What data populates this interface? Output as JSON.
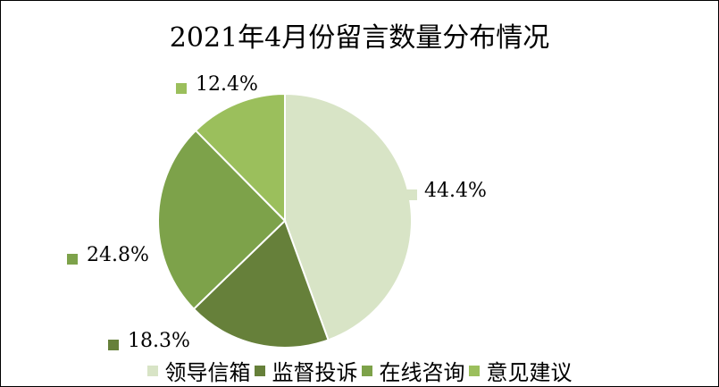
{
  "chart_data": {
    "type": "pie",
    "title": "2021年4月份留言数量分布情况",
    "categories": [
      "领导信箱",
      "监督投诉",
      "在线咨询",
      "意见建议"
    ],
    "values": [
      44.4,
      18.3,
      24.8,
      12.4
    ],
    "labels": [
      "44.4%",
      "18.3%",
      "24.8%",
      "12.4%"
    ],
    "colors": [
      "#d8e4c6",
      "#66803a",
      "#7da24a",
      "#9bbf5c"
    ],
    "legend_position": "bottom"
  }
}
